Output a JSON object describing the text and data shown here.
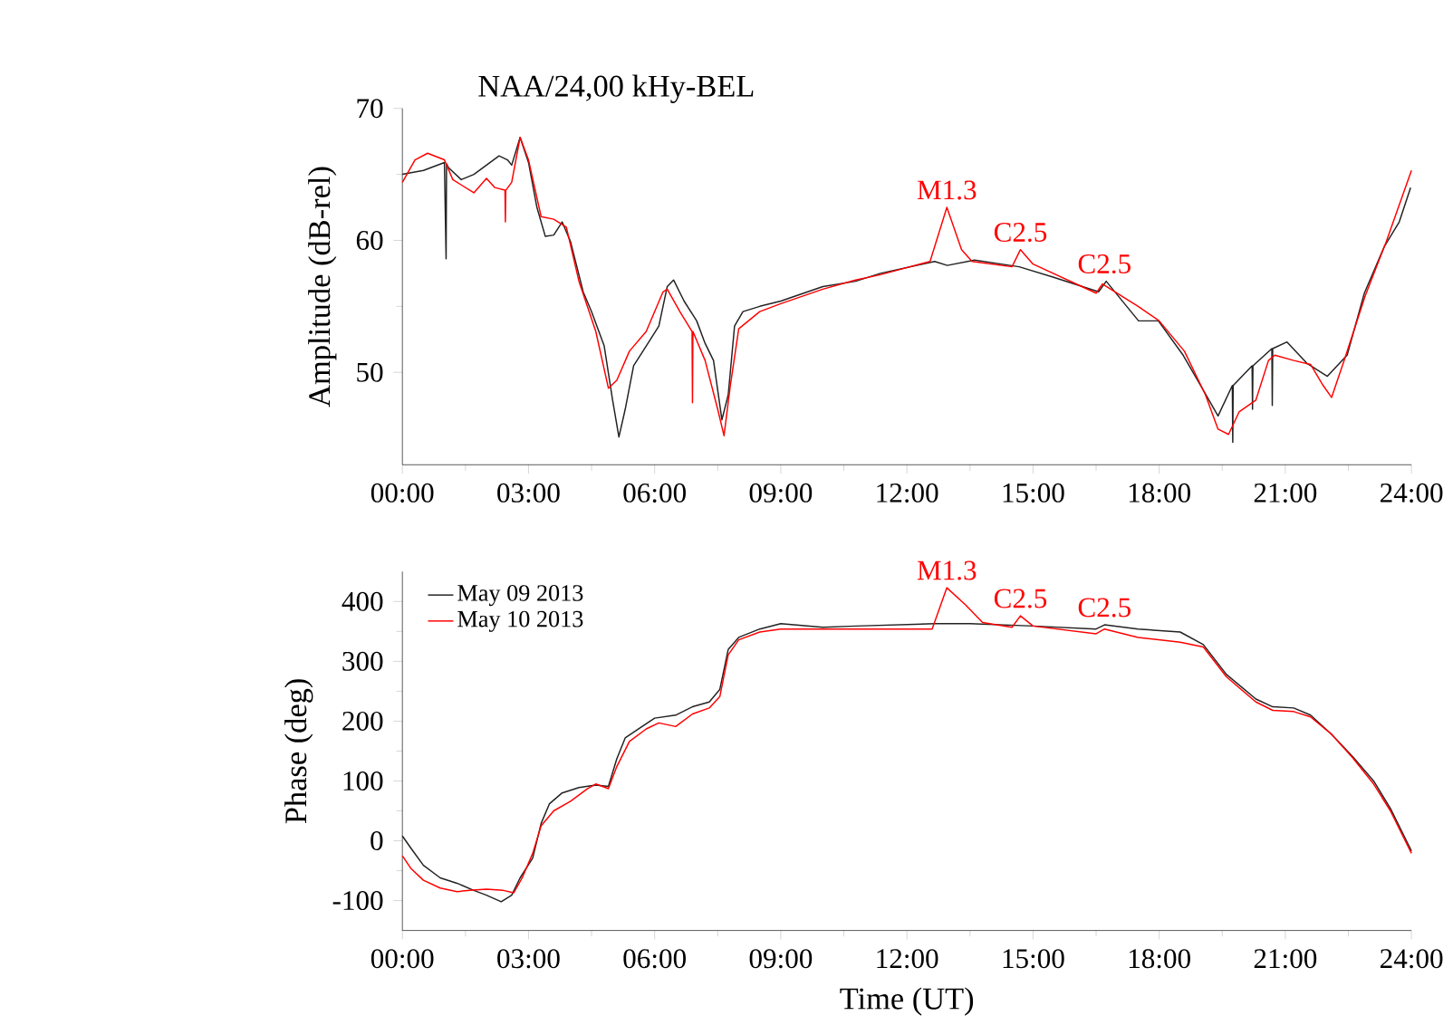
{
  "chart_data": [
    {
      "type": "line",
      "title": "NAA/24,00 kHy-BEL",
      "ylabel": "Amplitude (dB-rel)",
      "xlim": [
        0,
        24
      ],
      "ylim": [
        43,
        70
      ],
      "yticks": [
        50,
        60,
        70
      ],
      "xticks": [
        {
          "value": 0,
          "label": "00:00"
        },
        {
          "value": 3,
          "label": "03:00"
        },
        {
          "value": 6,
          "label": "06:00"
        },
        {
          "value": 9,
          "label": "09:00"
        },
        {
          "value": 12,
          "label": "12:00"
        },
        {
          "value": 15,
          "label": "15:00"
        },
        {
          "value": 18,
          "label": "18:00"
        },
        {
          "value": 21,
          "label": "21:00"
        },
        {
          "value": 24,
          "label": "24:00"
        }
      ],
      "series": [
        {
          "color": "#222222",
          "x": [
            0,
            0.5,
            1.0,
            1.04,
            1.05,
            1.1,
            1.4,
            1.7,
            2.0,
            2.3,
            2.5,
            2.6,
            2.8,
            3.0,
            3.2,
            3.4,
            3.6,
            3.8,
            4.0,
            4.3,
            4.5,
            4.8,
            5.0,
            5.15,
            5.3,
            5.5,
            5.8,
            6.1,
            6.3,
            6.45,
            6.7,
            7.0,
            7.2,
            7.4,
            7.6,
            7.75,
            7.9,
            8.1,
            8.5,
            9.0,
            10.0,
            10.78,
            11.37,
            12.66,
            12.96,
            13.61,
            14.67,
            15.49,
            16.56,
            16.74,
            17.51,
            17.98,
            18.57,
            19.04,
            19.4,
            19.74,
            19.75,
            19.76,
            20.21,
            20.22,
            20.23,
            20.68,
            20.69,
            20.7,
            21.04,
            21.51,
            22.0,
            22.47,
            22.88,
            23.35,
            23.71,
            23.98
          ],
          "values": [
            65.0,
            65.3,
            65.9,
            58.6,
            65.8,
            65.5,
            64.6,
            65.0,
            65.7,
            66.4,
            66.1,
            65.7,
            67.8,
            65.9,
            62.5,
            60.3,
            60.4,
            61.4,
            59.9,
            56.1,
            54.6,
            52.0,
            47.9,
            45.1,
            47.2,
            50.5,
            52.0,
            53.5,
            56.5,
            57.0,
            55.4,
            53.9,
            52.2,
            50.9,
            46.4,
            48.3,
            53.5,
            54.6,
            55.0,
            55.4,
            56.5,
            56.9,
            57.5,
            58.4,
            58.1,
            58.5,
            58.0,
            57.2,
            56.1,
            56.9,
            53.9,
            53.9,
            51.3,
            48.7,
            46.7,
            49.0,
            44.7,
            49.0,
            50.5,
            47.2,
            50.5,
            51.8,
            47.5,
            51.8,
            52.3,
            50.7,
            49.7,
            51.3,
            56.0,
            59.5,
            61.4,
            64.0
          ]
        },
        {
          "color": "#ff0000",
          "x": [
            0,
            0.3,
            0.6,
            1.0,
            1.2,
            1.7,
            2.0,
            2.2,
            2.44,
            2.45,
            2.46,
            2.6,
            2.8,
            3.0,
            3.3,
            3.6,
            3.9,
            4.2,
            4.6,
            4.9,
            5.1,
            5.4,
            5.8,
            6.2,
            6.3,
            6.6,
            6.89,
            6.9,
            6.91,
            7.2,
            7.5,
            7.65,
            7.8,
            8.0,
            8.5,
            9.0,
            10.0,
            10.78,
            11.37,
            12.55,
            12.95,
            13.3,
            13.55,
            14.5,
            14.7,
            15.0,
            16.5,
            16.65,
            17.5,
            18.0,
            18.6,
            19.1,
            19.4,
            19.65,
            19.9,
            20.3,
            20.6,
            20.75,
            21.2,
            21.6,
            21.9,
            22.1,
            22.4,
            22.9,
            23.4,
            24.0
          ],
          "values": [
            64.4,
            66.1,
            66.6,
            66.1,
            64.6,
            63.6,
            64.7,
            64.0,
            63.8,
            61.4,
            63.8,
            64.4,
            67.8,
            66.1,
            61.8,
            61.6,
            61.0,
            56.9,
            53.1,
            48.8,
            49.4,
            51.6,
            53.1,
            56.1,
            56.3,
            54.6,
            53.1,
            47.7,
            53.1,
            50.9,
            47.2,
            45.2,
            49.0,
            53.3,
            54.6,
            55.2,
            56.3,
            57.0,
            57.4,
            58.4,
            62.5,
            59.3,
            58.4,
            58.0,
            59.3,
            58.2,
            56.0,
            56.7,
            55.0,
            53.9,
            51.6,
            48.3,
            45.7,
            45.3,
            47.0,
            47.9,
            50.9,
            51.3,
            50.9,
            50.6,
            49.0,
            48.1,
            50.9,
            55.8,
            59.9,
            65.3
          ]
        }
      ],
      "annotations": [
        {
          "text": "M1.3",
          "x": 12.95,
          "y": 62.5
        },
        {
          "text": "C2.5",
          "x": 14.7,
          "y": 59.3
        },
        {
          "text": "C2.5",
          "x": 16.7,
          "y": 56.9
        }
      ]
    },
    {
      "type": "line",
      "xlabel": "Time (UT)",
      "ylabel": "Phase (deg)",
      "legend": "top left",
      "xlim": [
        0,
        24
      ],
      "ylim": [
        -150,
        450
      ],
      "yticks": [
        -100,
        0,
        100,
        200,
        300,
        400
      ],
      "xticks": [
        {
          "value": 0,
          "label": "00:00"
        },
        {
          "value": 3,
          "label": "03:00"
        },
        {
          "value": 6,
          "label": "06:00"
        },
        {
          "value": 9,
          "label": "09:00"
        },
        {
          "value": 12,
          "label": "12:00"
        },
        {
          "value": 15,
          "label": "15:00"
        },
        {
          "value": 18,
          "label": "18:00"
        },
        {
          "value": 21,
          "label": "21:00"
        },
        {
          "value": 24,
          "label": "24:00"
        }
      ],
      "series": [
        {
          "name": "May 09 2013",
          "color": "#222222",
          "x": [
            0,
            0.2,
            0.5,
            0.9,
            1.3,
            1.7,
            2.0,
            2.35,
            2.6,
            2.8,
            3.1,
            3.3,
            3.5,
            3.8,
            4.2,
            4.6,
            4.9,
            5.1,
            5.3,
            5.7,
            6.0,
            6.5,
            6.9,
            7.3,
            7.55,
            7.75,
            8.0,
            8.5,
            9.0,
            10.0,
            10.8,
            12.66,
            13.5,
            15.0,
            16.5,
            16.7,
            17.5,
            18.5,
            19.05,
            19.6,
            20.3,
            20.7,
            21.2,
            21.6,
            22.1,
            22.6,
            23.1,
            23.5,
            24.0
          ],
          "values": [
            8,
            -12,
            -41,
            -62,
            -71,
            -83,
            -91,
            -102,
            -91,
            -62,
            -29,
            29,
            62,
            80,
            89,
            93,
            91,
            137,
            172,
            191,
            205,
            210,
            224,
            232,
            253,
            320,
            340,
            354,
            363,
            357,
            359,
            363,
            363,
            359,
            354,
            361,
            354,
            349,
            328,
            278,
            237,
            224,
            222,
            210,
            178,
            141,
            100,
            54,
            -17
          ]
        },
        {
          "name": "May 10 2013",
          "color": "#ff0000",
          "x": [
            0,
            0.2,
            0.5,
            0.9,
            1.3,
            1.6,
            2.0,
            2.4,
            2.65,
            2.85,
            3.1,
            3.3,
            3.6,
            4.0,
            4.4,
            4.6,
            4.9,
            5.1,
            5.4,
            5.8,
            6.1,
            6.5,
            6.9,
            7.3,
            7.55,
            7.75,
            8.0,
            8.5,
            9.0,
            10.0,
            10.8,
            12.6,
            12.95,
            13.4,
            13.8,
            14.5,
            14.7,
            15.0,
            16.5,
            16.7,
            17.5,
            18.5,
            19.05,
            19.6,
            20.3,
            20.7,
            21.2,
            21.6,
            22.1,
            22.6,
            23.1,
            23.5,
            24.0
          ],
          "values": [
            -25,
            -46,
            -66,
            -79,
            -85,
            -83,
            -81,
            -83,
            -87,
            -62,
            -21,
            25,
            50,
            66,
            87,
            95,
            87,
            124,
            166,
            187,
            197,
            191,
            212,
            222,
            241,
            311,
            336,
            349,
            354,
            354,
            354,
            354,
            423,
            394,
            365,
            357,
            376,
            359,
            346,
            354,
            340,
            332,
            324,
            274,
            232,
            218,
            216,
            207,
            178,
            139,
            95,
            50,
            -21
          ]
        }
      ],
      "annotations": [
        {
          "text": "M1.3",
          "x": 12.95,
          "y": 423
        },
        {
          "text": "C2.5",
          "x": 14.7,
          "y": 376
        },
        {
          "text": "C2.5",
          "x": 16.7,
          "y": 361
        }
      ]
    }
  ]
}
